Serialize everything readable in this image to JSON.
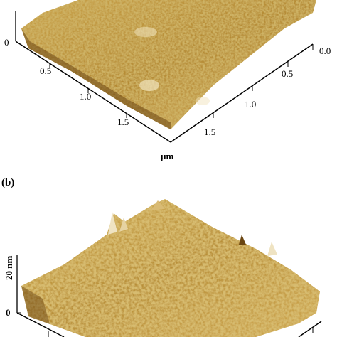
{
  "panel_a": {
    "left_axis_zero": "0",
    "left_ticks": [
      "0.5",
      "1.0",
      "1.5"
    ],
    "right_ticks": [
      "0.0",
      "0.5",
      "1.0",
      "1.5"
    ],
    "unit": "µm"
  },
  "panel_b": {
    "label": "(b)",
    "z_label": "20 nm",
    "z_zero": "0"
  },
  "colors": {
    "surface_light": "#d9b45a",
    "surface_mid": "#a57a24",
    "surface_dark": "#4a2e08",
    "highlight": "#f2e6c4"
  }
}
